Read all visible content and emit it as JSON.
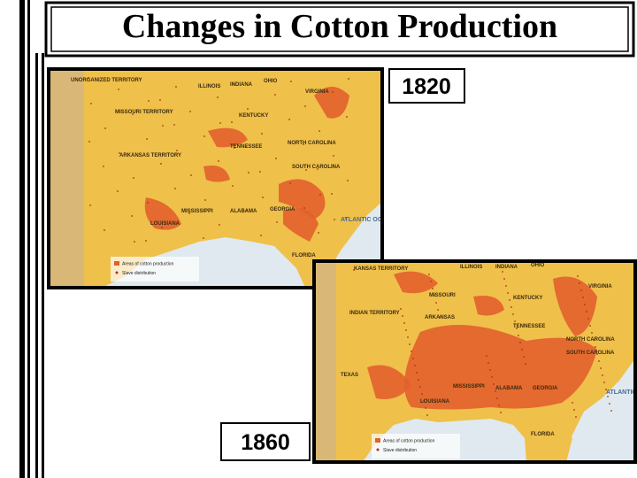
{
  "header": {
    "title": "Changes in Cotton Production"
  },
  "maps": [
    {
      "year": "1820",
      "labels": [
        "UNORGANIZED TERRITORY",
        "ILLINOIS",
        "INDIANA",
        "OHIO",
        "MISSOURI TERRITORY",
        "KENTUCKY",
        "VIRGINIA",
        "TENNESSEE",
        "NORTH CAROLINA",
        "ARKANSAS TERRITORY",
        "SOUTH CAROLINA",
        "MISSISSIPPI",
        "ALABAMA",
        "GEORGIA",
        "LOUISIANA",
        "FLORIDA",
        "ATLANTIC OCEAN"
      ],
      "legend": [
        "Areas of cotton production",
        "Slave distribution"
      ]
    },
    {
      "year": "1860",
      "labels": [
        "KANSAS TERRITORY",
        "ILLINOIS",
        "INDIANA",
        "OHIO",
        "MISSOURI",
        "KENTUCKY",
        "VIRGINIA",
        "INDIAN TERRITORY",
        "ARKANSAS",
        "TENNESSEE",
        "NORTH CAROLINA",
        "SOUTH CAROLINA",
        "TEXAS",
        "MISSISSIPPI",
        "ALABAMA",
        "GEORGIA",
        "LOUISIANA",
        "FLORIDA",
        "ATLANTIC OCEAN"
      ],
      "legend": [
        "Areas of cotton production",
        "Slave distribution"
      ]
    }
  ]
}
